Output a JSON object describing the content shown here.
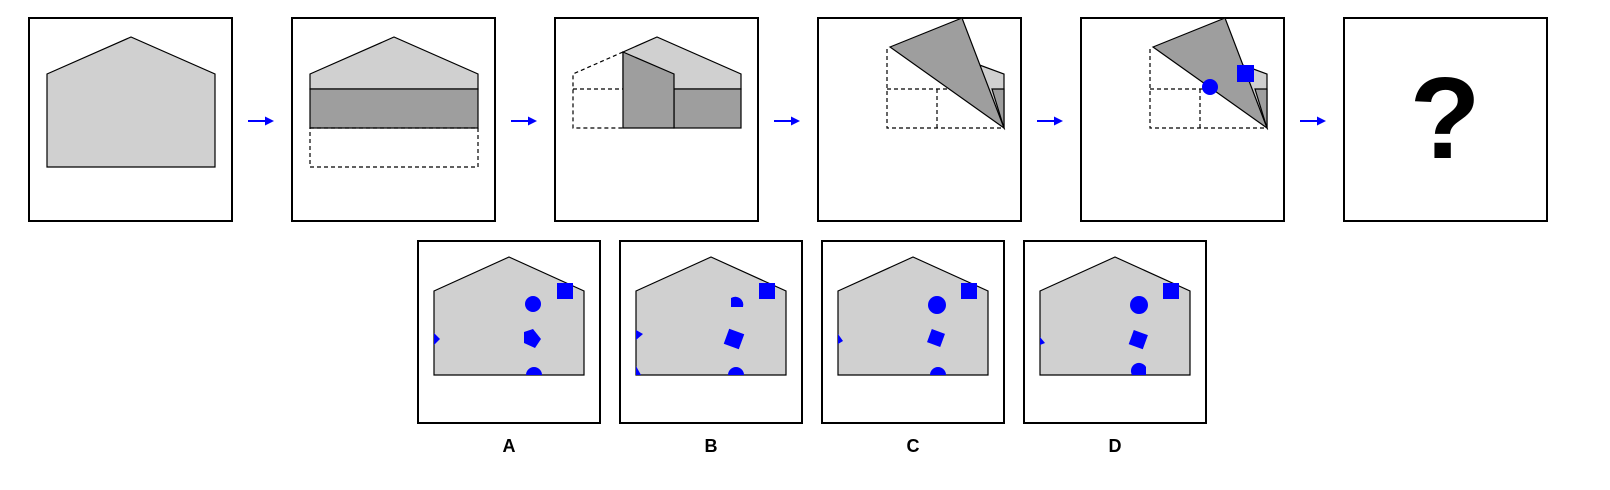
{
  "puzzle": {
    "question_mark": "?",
    "options": [
      {
        "label": "A"
      },
      {
        "label": "B"
      },
      {
        "label": "C"
      },
      {
        "label": "D"
      }
    ]
  },
  "colors": {
    "paper": "#d0d0d0",
    "folded_paper": "#9e9e9e",
    "punch": "#0000ff",
    "arrow": "#0000ff"
  }
}
